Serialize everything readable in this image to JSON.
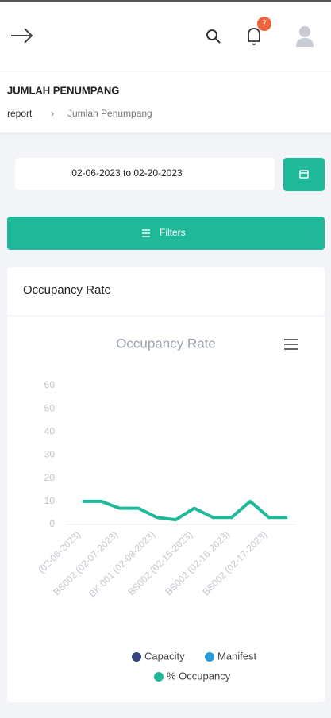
{
  "header": {
    "notification_count": 7
  },
  "page": {
    "title": "JUMLAH PENUMPANG",
    "breadcrumb": [
      "report",
      "Jumlah Penumpang"
    ]
  },
  "date_range": "02-06-2023 to 02-20-2023",
  "filters_button": "Filters",
  "card": {
    "title": "Occupancy Rate"
  },
  "chart_data": {
    "type": "line",
    "title": "Occupancy Rate",
    "categories": [
      "(02-06-2023)",
      null,
      "BS002 (02-07-2023)",
      null,
      "BK 001 (02-08-2023)",
      null,
      "BS002 (02-15-2023)",
      null,
      "BS002 (02-16-2023)",
      null,
      "BS002 (02-17-2023)",
      null
    ],
    "series": [
      {
        "name": "Capacity",
        "color": "#34437f",
        "values": [
          null,
          null,
          null,
          null,
          null,
          null,
          null,
          null,
          null,
          null,
          null,
          null
        ]
      },
      {
        "name": "Manifest",
        "color": "#2b9ad8",
        "values": [
          null,
          null,
          null,
          null,
          null,
          null,
          null,
          null,
          null,
          null,
          null,
          null
        ]
      },
      {
        "name": "% Occupancy",
        "color": "#1fb99a",
        "values": [
          10,
          10,
          7,
          7,
          3,
          2,
          7,
          3,
          3,
          10,
          3,
          3
        ]
      }
    ],
    "ylim": [
      0,
      60
    ],
    "yticks": [
      0,
      10,
      20,
      30,
      40,
      50,
      60
    ],
    "grid": false
  }
}
